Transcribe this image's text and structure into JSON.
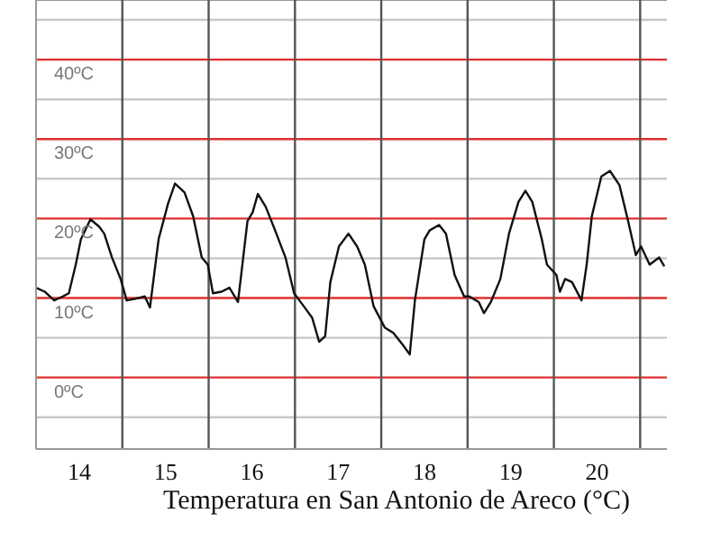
{
  "chart_data": {
    "type": "line",
    "title": "Temperatura en San Antonio de Areco (°C)",
    "xlim": [
      14,
      21.31
    ],
    "ylim": [
      -9,
      47.5
    ],
    "xticks": [
      {
        "value": 14.5,
        "label": "14"
      },
      {
        "value": 15.5,
        "label": "15"
      },
      {
        "value": 16.5,
        "label": "16"
      },
      {
        "value": 17.5,
        "label": "17"
      },
      {
        "value": 18.5,
        "label": "18"
      },
      {
        "value": 19.5,
        "label": "19"
      },
      {
        "value": 20.5,
        "label": "20"
      }
    ],
    "yticks": [
      {
        "value": -5,
        "label": null
      },
      {
        "value": 0,
        "label": "0ºC"
      },
      {
        "value": 5,
        "label": null
      },
      {
        "value": 10,
        "label": "10ºC"
      },
      {
        "value": 15,
        "label": null
      },
      {
        "value": 20,
        "label": "20ºC"
      },
      {
        "value": 25,
        "label": null
      },
      {
        "value": 30,
        "label": "30ºC"
      },
      {
        "value": 35,
        "label": null
      },
      {
        "value": 40,
        "label": "40ºC"
      },
      {
        "value": 45,
        "label": null
      }
    ],
    "grid": "y",
    "legend": false,
    "marker": "none",
    "line_style": "solid",
    "ref_lines": [
      {
        "axis": "x",
        "value": 15,
        "color": "#555555"
      },
      {
        "axis": "x",
        "value": 16,
        "color": "#555555"
      },
      {
        "axis": "x",
        "value": 17,
        "color": "#555555"
      },
      {
        "axis": "x",
        "value": 18,
        "color": "#555555"
      },
      {
        "axis": "x",
        "value": 19,
        "color": "#555555"
      },
      {
        "axis": "x",
        "value": 20,
        "color": "#555555"
      },
      {
        "axis": "x",
        "value": 21,
        "color": "#555555"
      }
    ],
    "series": [
      {
        "color": "#111111",
        "x": [
          14.0,
          14.1,
          14.21,
          14.31,
          14.38,
          14.46,
          14.52,
          14.63,
          14.73,
          14.79,
          14.88,
          14.98,
          15.05,
          15.15,
          15.26,
          15.32,
          15.42,
          15.53,
          15.61,
          15.72,
          15.82,
          15.92,
          15.99,
          16.05,
          16.15,
          16.24,
          16.34,
          16.45,
          16.51,
          16.57,
          16.66,
          16.76,
          16.89,
          16.99,
          17.1,
          17.2,
          17.28,
          17.35,
          17.41,
          17.51,
          17.62,
          17.72,
          17.81,
          17.91,
          18.04,
          18.14,
          18.25,
          18.33,
          18.39,
          18.5,
          18.56,
          18.67,
          18.75,
          18.85,
          18.96,
          19.02,
          19.13,
          19.19,
          19.27,
          19.38,
          19.48,
          19.59,
          19.67,
          19.75,
          19.86,
          19.92,
          20.03,
          20.07,
          20.13,
          20.21,
          20.32,
          20.38,
          20.44,
          20.55,
          20.65,
          20.76,
          20.86,
          20.95,
          21.01,
          21.11,
          21.22,
          21.28
        ],
        "values": [
          11.3,
          10.8,
          9.7,
          10.2,
          10.6,
          14.2,
          17.4,
          19.9,
          19.0,
          18.1,
          15.1,
          12.4,
          9.7,
          9.9,
          10.2,
          8.8,
          17.4,
          21.9,
          24.4,
          23.3,
          20.3,
          15.1,
          14.2,
          10.6,
          10.8,
          11.3,
          9.5,
          19.7,
          20.8,
          23.1,
          21.5,
          18.8,
          15.1,
          10.6,
          9.0,
          7.5,
          4.5,
          5.2,
          12.0,
          16.5,
          18.1,
          16.5,
          14.2,
          9.0,
          6.3,
          5.6,
          4.1,
          2.9,
          9.7,
          17.4,
          18.5,
          19.2,
          18.1,
          12.9,
          10.2,
          10.2,
          9.5,
          8.1,
          9.5,
          12.4,
          18.1,
          22.1,
          23.5,
          22.1,
          17.4,
          14.2,
          12.9,
          10.8,
          12.4,
          12.0,
          9.7,
          14.2,
          20.3,
          25.3,
          26.0,
          24.2,
          19.7,
          15.4,
          16.5,
          14.2,
          15.1,
          14.0
        ]
      }
    ]
  }
}
